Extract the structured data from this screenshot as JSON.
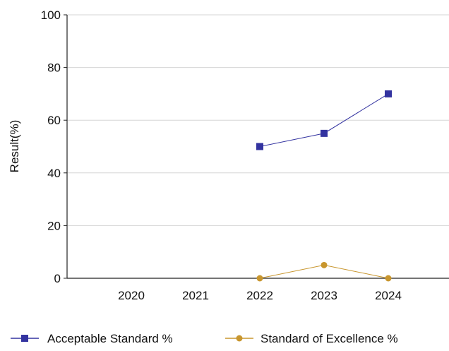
{
  "chart_data": {
    "type": "line",
    "title": "",
    "xlabel": "",
    "ylabel": "Result(%)",
    "categories": [
      "2020",
      "2021",
      "2022",
      "2023",
      "2024"
    ],
    "ylim": [
      0,
      100
    ],
    "yticks": [
      0,
      20,
      40,
      60,
      80,
      100
    ],
    "grid": "horizontal",
    "legend_position": "bottom",
    "series": [
      {
        "name": "Acceptable Standard %",
        "color": "#3333a0",
        "marker": "square",
        "values": [
          null,
          null,
          50,
          55,
          70
        ]
      },
      {
        "name": "Standard of Excellence %",
        "color": "#c8962e",
        "marker": "circle",
        "values": [
          null,
          null,
          0,
          5,
          0
        ]
      }
    ]
  }
}
